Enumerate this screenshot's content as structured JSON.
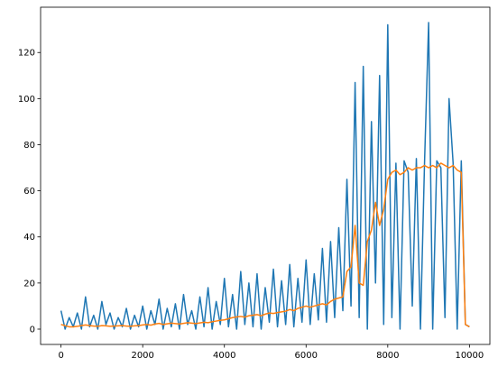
{
  "chart_data": {
    "type": "line",
    "x": [
      0,
      100,
      200,
      300,
      400,
      500,
      600,
      700,
      800,
      900,
      1000,
      1100,
      1200,
      1300,
      1400,
      1500,
      1600,
      1700,
      1800,
      1900,
      2000,
      2100,
      2200,
      2300,
      2400,
      2500,
      2600,
      2700,
      2800,
      2900,
      3000,
      3100,
      3200,
      3300,
      3400,
      3500,
      3600,
      3700,
      3800,
      3900,
      4000,
      4100,
      4200,
      4300,
      4400,
      4500,
      4600,
      4700,
      4800,
      4900,
      5000,
      5100,
      5200,
      5300,
      5400,
      5500,
      5600,
      5700,
      5800,
      5900,
      6000,
      6100,
      6200,
      6300,
      6400,
      6500,
      6600,
      6700,
      6800,
      6900,
      7000,
      7100,
      7200,
      7300,
      7400,
      7500,
      7600,
      7700,
      7800,
      7900,
      8000,
      8100,
      8200,
      8300,
      8400,
      8500,
      8600,
      8700,
      8800,
      8900,
      9000,
      9100,
      9200,
      9300,
      9400,
      9500,
      9600,
      9700,
      9800,
      9900,
      10000
    ],
    "series": [
      {
        "color": "#1f77b4",
        "values": [
          8,
          0,
          5,
          1,
          7,
          0,
          14,
          1,
          6,
          0,
          12,
          2,
          7,
          0,
          5,
          1,
          9,
          0,
          6,
          1,
          10,
          0,
          8,
          2,
          13,
          0,
          9,
          1,
          11,
          0,
          15,
          2,
          8,
          0,
          14,
          1,
          18,
          0,
          12,
          2,
          22,
          1,
          15,
          0,
          25,
          2,
          20,
          1,
          24,
          0,
          18,
          3,
          26,
          1,
          21,
          2,
          28,
          1,
          22,
          3,
          30,
          2,
          24,
          4,
          35,
          3,
          38,
          5,
          44,
          8,
          65,
          10,
          107,
          5,
          114,
          0,
          90,
          20,
          110,
          2,
          132,
          5,
          72,
          0,
          73,
          68,
          10,
          74,
          0,
          72,
          133,
          0,
          73,
          70,
          5,
          100,
          72,
          0,
          73,
          2,
          1
        ]
      },
      {
        "color": "#ff7f0e",
        "values": [
          2,
          1.5,
          1,
          1,
          1.2,
          1.5,
          1.8,
          1.5,
          1.3,
          1.2,
          1.5,
          1.4,
          1.2,
          1.3,
          1.4,
          1.5,
          1.3,
          1.2,
          1.4,
          1.5,
          1.8,
          2,
          1.7,
          2.2,
          2.5,
          2,
          2.3,
          2.6,
          2.4,
          2.2,
          2.5,
          2.8,
          2.6,
          2.4,
          2.7,
          3,
          2.8,
          3.2,
          3.5,
          3.8,
          4,
          4.5,
          5,
          5.3,
          5.5,
          5.2,
          5.8,
          6,
          6.3,
          5.8,
          6.5,
          7,
          6.8,
          7.2,
          7.5,
          7.8,
          8.5,
          8,
          9,
          9.5,
          10,
          9.5,
          10,
          10.5,
          11,
          10.5,
          12,
          13,
          13.5,
          14,
          25,
          27,
          45,
          20,
          19,
          38,
          43,
          55,
          45,
          52,
          65,
          68,
          69,
          67,
          68,
          70,
          69,
          70,
          70,
          71,
          70,
          71,
          70,
          72,
          71,
          70,
          71,
          69,
          68,
          2,
          1
        ]
      }
    ],
    "xlim": [
      -500,
      10500
    ],
    "ylim": [
      -6.65,
      139.65
    ],
    "xticks": [
      0,
      2000,
      4000,
      6000,
      8000,
      10000
    ],
    "yticks": [
      0,
      20,
      40,
      60,
      80,
      100,
      120
    ]
  }
}
